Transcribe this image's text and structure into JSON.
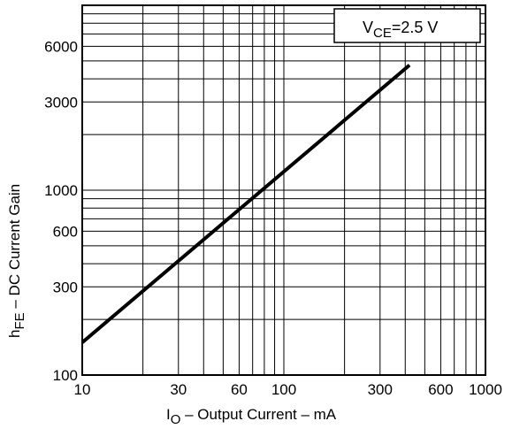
{
  "chart_data": {
    "type": "line",
    "xscale": "log",
    "yscale": "log",
    "xlim": [
      10,
      1000
    ],
    "ylim": [
      100,
      10000
    ],
    "x_ticks": [
      10,
      30,
      60,
      100,
      300,
      600,
      1000
    ],
    "x_tick_labels": [
      "10",
      "30",
      "60",
      "100",
      "300",
      "600",
      "1000"
    ],
    "y_ticks": [
      100,
      300,
      600,
      1000,
      3000,
      6000
    ],
    "y_tick_labels": [
      "100",
      "300",
      "600",
      "1000",
      "3000",
      "6000"
    ],
    "xlabel": {
      "main": "I",
      "sub": "O",
      "rest": " – Output Current – mA"
    },
    "ylabel": {
      "main": "h",
      "sub": "FE",
      "rest": " – DC Current Gain"
    },
    "annotation": {
      "main": "V",
      "sub": "CE",
      "rest": "=2.5 V"
    },
    "grid": true,
    "series": [
      {
        "x": [
          10,
          420
        ],
        "y": [
          150,
          4750
        ]
      }
    ]
  }
}
